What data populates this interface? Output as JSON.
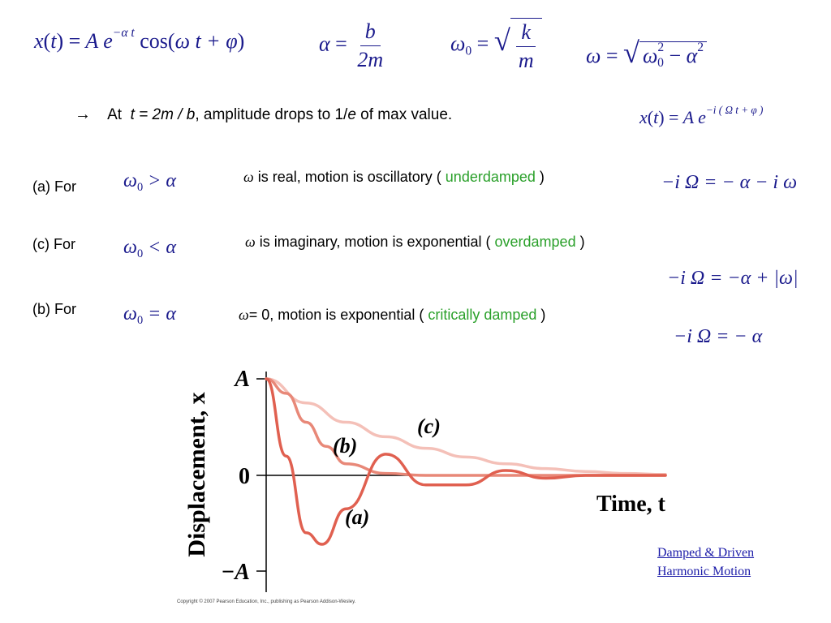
{
  "equations": {
    "displacement": {
      "lhs": "x",
      "arg": "t",
      "eq": "=",
      "amp": "A",
      "e": "e",
      "exp": "−α t",
      "func": "cos",
      "inner": "ω t + φ"
    },
    "alpha": {
      "lhs": "α",
      "eq": "=",
      "num": "b",
      "den": "2m"
    },
    "omega0": {
      "lhs": "ω",
      "sub": "0",
      "eq": "=",
      "num": "k",
      "den": "m"
    },
    "omega": {
      "lhs": "ω",
      "eq": "=",
      "a": "ω",
      "a_sup": "2",
      "a_sub": "0",
      "minus": "−",
      "b": "α",
      "b_sup": "2"
    },
    "complex": {
      "lhs": "x",
      "arg": "t",
      "eq": "=",
      "amp": "A",
      "e": "e",
      "exp": "−i ( Ω t + φ )"
    }
  },
  "note": {
    "arrow": "→",
    "at": "At",
    "t_expr": "t = 2m / b",
    "rest1": ",  amplitude drops to 1/",
    "e": "e",
    "rest2": " of max value."
  },
  "cases": [
    {
      "label": "(a)  For",
      "cond_base": "ω",
      "cond_sub": "0",
      "cond_rel": " > α",
      "desc_sym": "ω",
      "desc": "  is real,   motion is oscillatory  ( ",
      "type": "underdamped",
      "close": " )",
      "rel": "−i Ω = − α − i ω"
    },
    {
      "label": "(c)  For",
      "cond_base": "ω",
      "cond_sub": "0",
      "cond_rel": " < α",
      "desc_sym": "ω",
      "desc": "    is imaginary,   motion is exponential  ( ",
      "type": "overdamped",
      "close": " )",
      "rel": "−i Ω = −α + |ω|"
    },
    {
      "label": "(b)  For",
      "cond_base": "ω",
      "cond_sub": "0",
      "cond_rel": " = α",
      "desc_sym": "ω",
      "desc": "= 0,   motion is exponential  ( ",
      "type": "critically damped",
      "close": " )",
      "rel": "−i Ω = − α"
    }
  ],
  "chart_data": {
    "type": "line",
    "ylabel": "Displacement, x",
    "xlabel": "Time, t",
    "y_ticks": [
      "A",
      "0",
      "−A"
    ],
    "ylim": [
      -1,
      1
    ],
    "xlim": [
      0,
      1
    ],
    "series": [
      {
        "name": "(a)",
        "label_text": "(a)",
        "color": "#e06050",
        "x": [
          0,
          0.05,
          0.1,
          0.14,
          0.2,
          0.3,
          0.4,
          0.5,
          0.6,
          0.7,
          0.8,
          1.0
        ],
        "y": [
          1,
          0.2,
          -0.6,
          -0.72,
          -0.35,
          0.22,
          -0.1,
          -0.1,
          0.05,
          -0.03,
          0.0,
          0.0
        ]
      },
      {
        "name": "(b)",
        "label_text": "(b)",
        "color": "#e88878",
        "x": [
          0,
          0.05,
          0.1,
          0.15,
          0.2,
          0.3,
          0.4,
          0.6,
          1.0
        ],
        "y": [
          1,
          0.85,
          0.55,
          0.3,
          0.12,
          0.02,
          0.0,
          0.0,
          0.0
        ]
      },
      {
        "name": "(c)",
        "label_text": "(c)",
        "color": "#f4c0b8",
        "x": [
          0,
          0.1,
          0.2,
          0.3,
          0.4,
          0.5,
          0.6,
          0.7,
          0.8,
          0.9,
          1.0
        ],
        "y": [
          1,
          0.75,
          0.55,
          0.4,
          0.28,
          0.19,
          0.12,
          0.07,
          0.04,
          0.02,
          0.01
        ]
      }
    ]
  },
  "copyright": "Copyright © 2007 Pearson Education, Inc., publishing as Pearson Addison-Wesley.",
  "link": {
    "line1": "Damped & Driven",
    "line2": "Harmonic Motion"
  }
}
